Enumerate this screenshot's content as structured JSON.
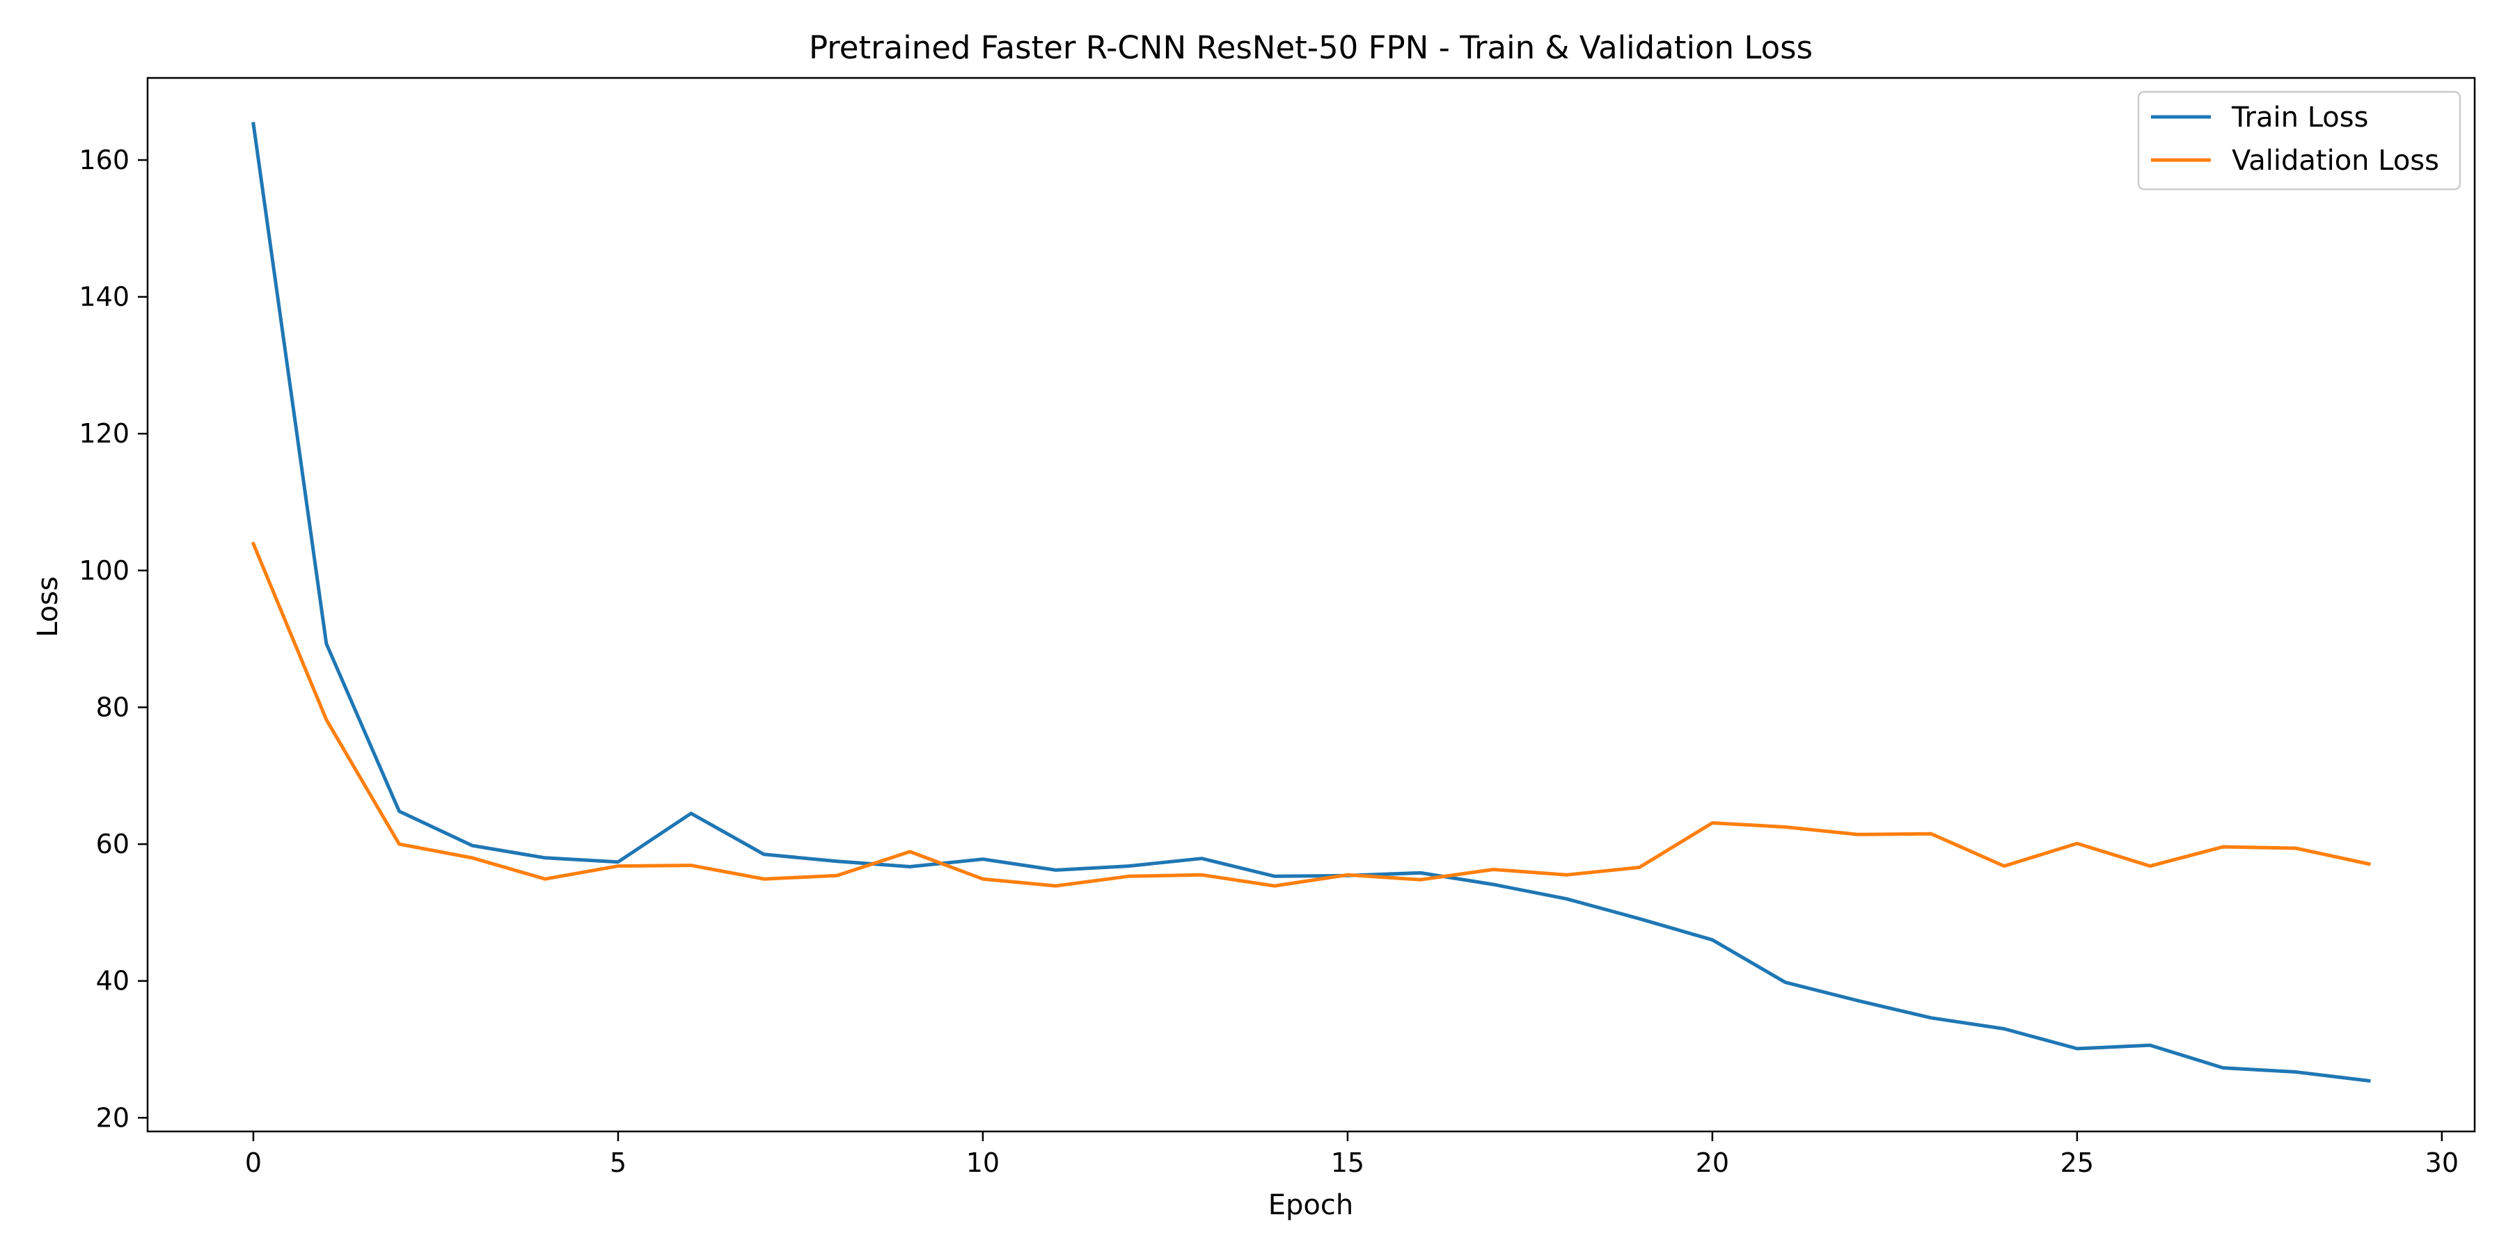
{
  "chart_data": {
    "type": "line",
    "title": "Pretrained Faster R-CNN ResNet-50 FPN - Train & Validation Loss",
    "xlabel": "Epoch",
    "ylabel": "Loss",
    "xlim": [
      -1.45,
      30.45
    ],
    "ylim": [
      18.0,
      172.0
    ],
    "x_ticks": [
      0,
      5,
      10,
      15,
      20,
      25,
      30
    ],
    "y_ticks": [
      20,
      40,
      60,
      80,
      100,
      120,
      140,
      160
    ],
    "grid": false,
    "legend_position": "top-right",
    "x": [
      0,
      1,
      2,
      3,
      4,
      5,
      6,
      7,
      8,
      9,
      10,
      11,
      12,
      13,
      14,
      15,
      16,
      17,
      18,
      19,
      20,
      21,
      22,
      23,
      24,
      25,
      26,
      27,
      28,
      29
    ],
    "series": [
      {
        "name": "Train Loss",
        "color": "#1f77b4",
        "values": [
          165.3,
          89.3,
          64.8,
          59.8,
          58.0,
          57.4,
          64.5,
          58.5,
          57.5,
          56.7,
          57.8,
          56.2,
          56.8,
          57.9,
          55.3,
          55.4,
          55.8,
          54.1,
          52.0,
          49.1,
          46.0,
          39.8,
          37.1,
          34.6,
          33.0,
          30.1,
          30.6,
          27.3,
          26.7,
          25.4
        ]
      },
      {
        "name": "Validation Loss",
        "color": "#ff7f0e",
        "values": [
          103.9,
          78.2,
          60.0,
          58.0,
          54.9,
          56.8,
          56.9,
          54.9,
          55.4,
          58.9,
          54.9,
          53.9,
          55.3,
          55.5,
          53.9,
          55.5,
          54.8,
          56.3,
          55.5,
          56.6,
          63.1,
          62.5,
          61.4,
          61.5,
          56.8,
          60.1,
          56.8,
          59.6,
          59.4,
          57.1
        ]
      }
    ]
  }
}
